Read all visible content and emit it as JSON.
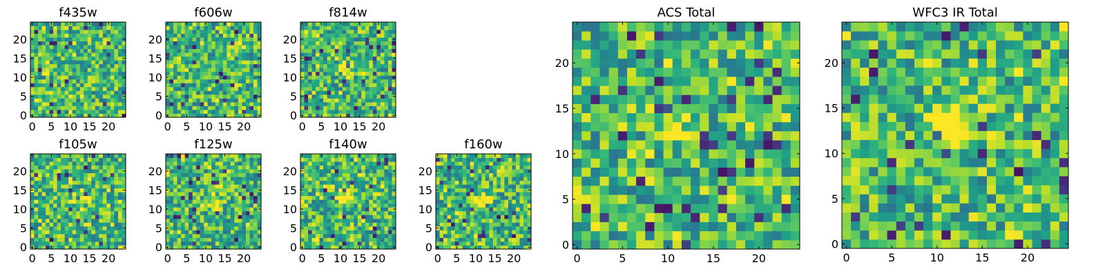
{
  "chart_data": [
    {
      "type": "heatmap",
      "title": "f435w",
      "x_ticks": [
        0,
        5,
        10,
        15,
        20
      ],
      "y_ticks": [
        0,
        5,
        10,
        15,
        20
      ],
      "xlim": [
        -0.5,
        24.5
      ],
      "ylim": [
        -0.5,
        24.5
      ],
      "grid": false,
      "colormap": "viridis",
      "source_peak": null,
      "center_contrast": 0.05
    },
    {
      "type": "heatmap",
      "title": "f606w",
      "x_ticks": [
        0,
        5,
        10,
        15,
        20
      ],
      "y_ticks": [
        0,
        5,
        10,
        15,
        20
      ],
      "xlim": [
        -0.5,
        24.5
      ],
      "ylim": [
        -0.5,
        24.5
      ],
      "grid": false,
      "colormap": "viridis",
      "source_peak": null,
      "center_contrast": 0.0
    },
    {
      "type": "heatmap",
      "title": "f814w",
      "x_ticks": [
        0,
        5,
        10,
        15,
        20
      ],
      "y_ticks": [
        0,
        5,
        10,
        15,
        20
      ],
      "xlim": [
        -0.5,
        24.5
      ],
      "ylim": [
        -0.5,
        24.5
      ],
      "grid": false,
      "colormap": "viridis",
      "source_peak": [
        12,
        12
      ],
      "center_contrast": 0.2
    },
    {
      "type": "heatmap",
      "title": "f105w",
      "x_ticks": [
        0,
        5,
        10,
        15,
        20
      ],
      "y_ticks": [
        0,
        5,
        10,
        15,
        20
      ],
      "xlim": [
        -0.5,
        24.5
      ],
      "ylim": [
        -0.5,
        24.5
      ],
      "grid": false,
      "colormap": "viridis",
      "source_peak": [
        12,
        13
      ],
      "center_contrast": 0.3
    },
    {
      "type": "heatmap",
      "title": "f125w",
      "x_ticks": [
        0,
        5,
        10,
        15,
        20
      ],
      "y_ticks": [
        0,
        5,
        10,
        15,
        20
      ],
      "xlim": [
        -0.5,
        24.5
      ],
      "ylim": [
        -0.5,
        24.5
      ],
      "grid": false,
      "colormap": "viridis",
      "source_peak": [
        12,
        12
      ],
      "center_contrast": 0.4
    },
    {
      "type": "heatmap",
      "title": "f140w",
      "x_ticks": [
        0,
        5,
        10,
        15,
        20
      ],
      "y_ticks": [
        0,
        5,
        10,
        15,
        20
      ],
      "xlim": [
        -0.5,
        24.5
      ],
      "ylim": [
        -0.5,
        24.5
      ],
      "grid": false,
      "colormap": "viridis",
      "source_peak": [
        12,
        13
      ],
      "center_contrast": 0.35
    },
    {
      "type": "heatmap",
      "title": "f160w",
      "x_ticks": [
        0,
        5,
        10,
        15,
        20
      ],
      "y_ticks": [
        0,
        5,
        10,
        15,
        20
      ],
      "xlim": [
        -0.5,
        24.5
      ],
      "ylim": [
        -0.5,
        24.5
      ],
      "grid": false,
      "colormap": "viridis",
      "source_peak": [
        12,
        12
      ],
      "center_contrast": 0.5
    },
    {
      "type": "heatmap",
      "title": "ACS Total",
      "x_ticks": [
        0,
        5,
        10,
        15,
        20
      ],
      "y_ticks": [
        0,
        5,
        10,
        15,
        20
      ],
      "xlim": [
        -0.5,
        24.5
      ],
      "ylim": [
        -0.5,
        24.5
      ],
      "grid": false,
      "colormap": "viridis",
      "source_peak": [
        11,
        13
      ],
      "center_contrast": 0.25
    },
    {
      "type": "heatmap",
      "title": "WFC3 IR Total",
      "x_ticks": [
        0,
        5,
        10,
        15,
        20
      ],
      "y_ticks": [
        0,
        5,
        10,
        15,
        20
      ],
      "xlim": [
        -0.5,
        24.5
      ],
      "ylim": [
        -0.5,
        24.5
      ],
      "grid": false,
      "colormap": "viridis",
      "source_peak": [
        12,
        13
      ],
      "center_contrast": 0.7
    }
  ],
  "colors": {
    "viridis": [
      "#440154",
      "#482878",
      "#3e4989",
      "#31688e",
      "#26828e",
      "#1f9e89",
      "#35b779",
      "#6ece58",
      "#b5de2b",
      "#fde725"
    ],
    "axis": "#000000",
    "background": "#ffffff"
  }
}
